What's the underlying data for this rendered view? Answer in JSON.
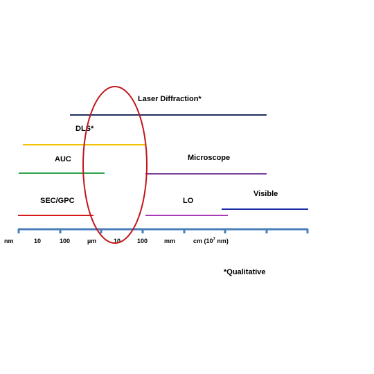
{
  "methods": [
    {
      "key": "laser",
      "label": "Laser Diffraction*",
      "color": "#1F2D5C"
    },
    {
      "key": "dls",
      "label": "DLS*",
      "color": "#F2C200"
    },
    {
      "key": "auc",
      "label": "AUC",
      "color": "#2EA44F"
    },
    {
      "key": "microscope",
      "label": "Microscope",
      "color": "#7B3F9E"
    },
    {
      "key": "sec",
      "label": "SEC/GPC",
      "color": "#D7191C"
    },
    {
      "key": "lo",
      "label": "LO",
      "color": "#A63BB5"
    },
    {
      "key": "visible",
      "label": "Visible",
      "color": "#1A2BA8"
    }
  ],
  "axis": {
    "color": "#4A7EBB",
    "labels": [
      "nm",
      "10",
      "100",
      "µm",
      "10",
      "100",
      "mm",
      "cm (10",
      "7",
      " nm)"
    ]
  },
  "highlight_color": "#C0161C",
  "note": "*Qualitative"
}
